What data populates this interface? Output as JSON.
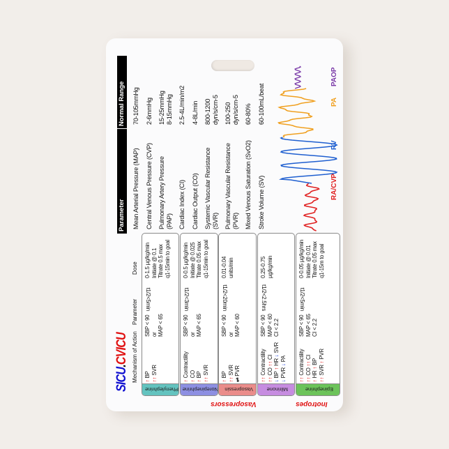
{
  "logo": {
    "part1": "SICU",
    "dot": ".",
    "part2": "CVICU"
  },
  "reference_table": {
    "headers": {
      "parameter": "Parameter",
      "range": "Normal Range"
    },
    "rows": [
      {
        "parameter": [
          "Mean Arterial Pressure (MAP)"
        ],
        "range": [
          "70-105mmHg"
        ]
      },
      {
        "parameter": [
          "Central Venous Pressure (CVP)"
        ],
        "range": [
          "2-6mmHg"
        ]
      },
      {
        "parameter": [
          "Pulmonary Artery Pressure",
          "(PAP)"
        ],
        "range": [
          "15-25mmHg",
          "8-15mmHg"
        ]
      },
      {
        "parameter": [
          "Cardiac Index (CI)"
        ],
        "range": [
          "2.5-4L/min/m2"
        ]
      },
      {
        "parameter": [
          "Cardiac Output (CO)"
        ],
        "range": [
          "4-8L/min"
        ]
      },
      {
        "parameter": [
          "Systemic Vascular Resistance",
          "(SVR)"
        ],
        "range": [
          "800-1200",
          "dyn/s/cm-5"
        ]
      },
      {
        "parameter": [
          "Pulmonary Vascular Resistance",
          "(PVR)"
        ],
        "range": [
          "100-250",
          "dyn/s/cm-5"
        ]
      },
      {
        "parameter": [
          "Mixed Venous Saturation (SvO2)"
        ],
        "range": [
          "60-80%"
        ]
      },
      {
        "parameter": [
          "Stroke Volume (SV)"
        ],
        "range": [
          "60-100mL/beat"
        ]
      }
    ]
  },
  "waveform_labels": {
    "ra": "RA/CVP",
    "rv": "RV",
    "pa": "PA",
    "paop": "PAOP"
  },
  "colors": {
    "ra": "#e02020",
    "rv": "#1f5fd0",
    "pa": "#f0a020",
    "paop": "#7a3aa8",
    "up_arrow": "#e01010",
    "down_arrow": "#1a3ee0",
    "section": "#e01010",
    "logo_blue": "#1010d0",
    "logo_red": "#e01010"
  },
  "drug_table": {
    "headers": {
      "mechanism": "Mechanism of Action",
      "parameter": "Parameter",
      "dose": "Dose"
    },
    "sections": {
      "vasopressors": "Vasopressors",
      "inotropes": "Inotropes"
    },
    "drugs": [
      {
        "name": "Phenylephrine",
        "color": "#63c3bf",
        "mechanism": [
          [
            [
              "↑",
              "up"
            ],
            [
              "BP",
              ""
            ]
          ],
          [
            [
              "↑↑",
              "up"
            ],
            [
              "SVR",
              ""
            ]
          ]
        ],
        "parameter": [
          "SBP < 90",
          "or",
          "MAP < 65"
        ],
        "half_life": "t1/2<5min",
        "dose": [
          "0-1.5 µg/kg/min",
          "Initiate @ 0.1",
          "Titrate 0.5 max",
          "q1-15min to goal"
        ]
      },
      {
        "name": "Norepinephrine",
        "color": "#8d8fe2",
        "mechanism": [
          [
            [
              "↑",
              "up"
            ],
            [
              "Contractility",
              ""
            ]
          ],
          [
            [
              "↑",
              "up"
            ],
            [
              "CO",
              ""
            ]
          ],
          [
            [
              "↑",
              "up"
            ],
            [
              "BP",
              ""
            ]
          ],
          [
            [
              "↑↑",
              "up"
            ],
            [
              "SVR",
              ""
            ]
          ]
        ],
        "parameter": [
          "SBP < 90",
          "or",
          "MAP < 65"
        ],
        "half_life": "t1/2<3min",
        "dose": [
          "0-0.5 µg/kg/min",
          "Initiate @ 0.025",
          "Titrate 0.05 max",
          "q1-15min to goal"
        ]
      },
      {
        "name": "Vasopressin",
        "color": "#ea8c8a",
        "mechanism": [
          [
            [
              "↑",
              "up"
            ],
            [
              "BP",
              ""
            ]
          ],
          [
            [
              "↑↑",
              "up"
            ],
            [
              "SVR",
              ""
            ]
          ],
          [
            [
              "⇌",
              "eq"
            ],
            [
              "PVR",
              ""
            ]
          ]
        ],
        "parameter": [
          "SBP < 90",
          "or",
          "MAP < 60"
        ],
        "half_life": "t1/2<20min",
        "dose": [
          "0.01-0.04",
          "units/min"
        ]
      },
      {
        "name": "Milrinone",
        "color": "#c68ce0",
        "mechanism": [
          [
            [
              "↑↑",
              "up"
            ],
            [
              "Contractility",
              ""
            ]
          ],
          [
            [
              "↑↑",
              "up"
            ],
            [
              "CO",
              ""
            ],
            [
              "↑↑",
              "up"
            ],
            [
              "CI",
              ""
            ]
          ],
          [
            [
              "↓",
              "down"
            ],
            [
              "BP",
              ""
            ],
            [
              "↑",
              "up"
            ],
            [
              "HR",
              ""
            ],
            [
              "↓",
              "down"
            ],
            [
              "SVR",
              ""
            ]
          ],
          [
            [
              "↓",
              "down"
            ],
            [
              "PVR",
              ""
            ],
            [
              "↓",
              "down"
            ],
            [
              "PA",
              ""
            ]
          ]
        ],
        "parameter": [
          "SBP < 90",
          "MAP < 60",
          "CI < 2.2"
        ],
        "half_life": "t1/2<2.5hrs",
        "dose": [
          "0.25-0.75",
          "µg/kg/min"
        ]
      },
      {
        "name": "Epinephrine",
        "color": "#6cc35a",
        "mechanism": [
          [
            [
              "↑↑",
              "up"
            ],
            [
              "Contractility",
              ""
            ]
          ],
          [
            [
              "↑↑",
              "up"
            ],
            [
              "CO",
              ""
            ],
            [
              "↑↑",
              "up"
            ],
            [
              "CI",
              ""
            ]
          ],
          [
            [
              "↑",
              "up"
            ],
            [
              "HR",
              ""
            ],
            [
              "↑",
              "up"
            ],
            [
              "BP",
              ""
            ]
          ],
          [
            [
              "↑↑",
              "up"
            ],
            [
              "SVR",
              ""
            ],
            [
              "↑",
              "up"
            ],
            [
              "PVR",
              ""
            ]
          ]
        ],
        "parameter": [
          "SBP < 90",
          "MAP < 65",
          "CI < 2.2"
        ],
        "half_life": "t1/2<5min",
        "dose": [
          "0-0.05 µg/kg/min",
          "Initiate @ 0.01",
          "Titrate 0.05 max",
          "q1-15m to goal"
        ]
      }
    ]
  }
}
